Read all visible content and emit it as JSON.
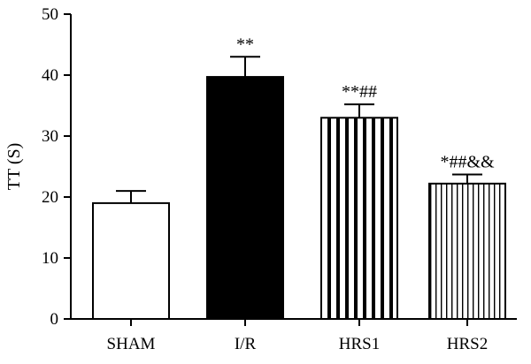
{
  "chart_data": {
    "type": "bar",
    "title": "",
    "xlabel": "",
    "ylabel": "TT (S)",
    "ylim": [
      0,
      50
    ],
    "yticks": [
      0,
      10,
      20,
      30,
      40,
      50
    ],
    "grid": false,
    "categories": [
      "SHAM",
      "I/R",
      "HRS1",
      "HRS2"
    ],
    "values": [
      19,
      39.7,
      33,
      22.2
    ],
    "errors": [
      2,
      3.3,
      2.2,
      1.5
    ],
    "annotations": [
      "",
      "**",
      "**##",
      "*##&&"
    ],
    "fills": [
      "white",
      "solid-black",
      "vertical-stripes-wide",
      "vertical-stripes-narrow"
    ],
    "colors": {
      "stroke": "#000000",
      "solid": "#000000",
      "background": "#ffffff"
    }
  }
}
